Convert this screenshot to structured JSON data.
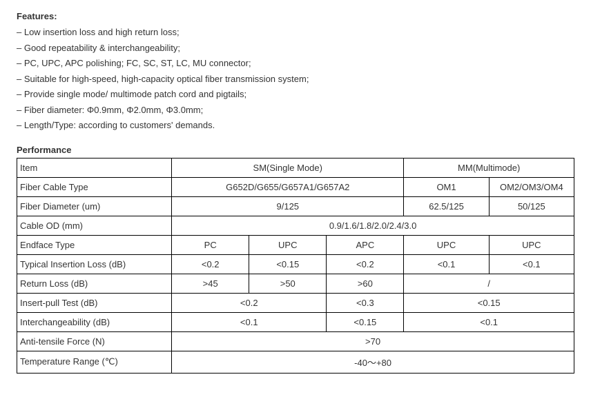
{
  "features": {
    "heading": "Features:",
    "items": [
      "– Low insertion loss and high return loss;",
      "– Good repeatability & interchangeability;",
      "– PC, UPC, APC polishing; FC, SC, ST, LC, MU connector;",
      "– Suitable for high-speed, high-capacity optical fiber transmission system;",
      "– Provide single mode/ multimode patch cord and pigtails;",
      "– Fiber diameter: Φ0.9mm, Φ2.0mm, Φ3.0mm;",
      "– Length/Type: according to customers' demands."
    ]
  },
  "performance": {
    "heading": "Performance",
    "labels": {
      "item": "Item",
      "fiber_cable_type": "Fiber Cable Type",
      "fiber_diameter": "Fiber Diameter (um)",
      "cable_od": "Cable OD (mm)",
      "endface_type": "Endface Type",
      "typical_insertion_loss": "Typical Insertion Loss (dB)",
      "return_loss": "Return Loss (dB)",
      "insert_pull_test": "Insert-pull Test (dB)",
      "interchangeability": "Interchangeability (dB)",
      "anti_tensile_force": "Anti-tensile Force (N)",
      "temperature_range": "Temperature Range (℃)"
    },
    "header_groups": {
      "sm": "SM(Single Mode)",
      "mm": "MM(Multimode)"
    },
    "fiber_cable_type": {
      "sm": "G652D/G655/G657A1/G657A2",
      "mm1": "OM1",
      "mm2": "OM2/OM3/OM4"
    },
    "fiber_diameter": {
      "sm": "9/125",
      "mm1": "62.5/125",
      "mm2": "50/125"
    },
    "cable_od": "0.9/1.6/1.8/2.0/2.4/3.0",
    "endface_type": {
      "c1": "PC",
      "c2": "UPC",
      "c3": "APC",
      "c4": "UPC",
      "c5": "UPC"
    },
    "typical_insertion_loss": {
      "c1": "<0.2",
      "c2": "<0.15",
      "c3": "<0.2",
      "c4": "<0.1",
      "c5": "<0.1"
    },
    "return_loss": {
      "c1": ">45",
      "c2": ">50",
      "c3": ">60",
      "c45": "/"
    },
    "insert_pull_test": {
      "sm12": "<0.2",
      "sm3": "<0.3",
      "mm": "<0.15"
    },
    "interchangeability": {
      "sm12": "<0.1",
      "sm3": "<0.15",
      "mm": "<0.1"
    },
    "anti_tensile_force": ">70",
    "temperature_range": "-40～+80"
  },
  "style": {
    "text_color": "#333333",
    "border_color": "#000000",
    "background_color": "#ffffff",
    "font_size_body": 13,
    "font_family": "Arial"
  }
}
